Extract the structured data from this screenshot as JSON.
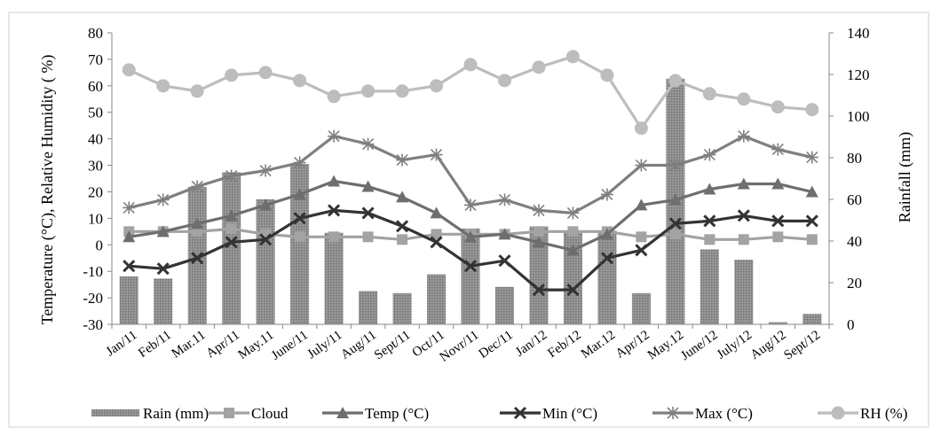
{
  "chart_data": {
    "type": "combo",
    "categories": [
      "Jan/11",
      "Feb/11",
      "Mar.11",
      "Apr/11",
      "May.11",
      "June/11",
      "July/11",
      "Aug/11",
      "Sept/11",
      "Oct/11",
      "Novr/11",
      "Dec/11",
      "Jan/12",
      "Feb/12",
      "Mar.12",
      "Apr/12",
      "May.12",
      "June/12",
      "July/12",
      "Aug/12",
      "Sept/12"
    ],
    "left_axis": {
      "label": "Temperature (°C), Relative Humidity ( %)",
      "range": [
        -30,
        80
      ],
      "ticks": [
        "80",
        "70",
        "60",
        "50",
        "40",
        "30",
        "20",
        "10",
        "0",
        "-10",
        "-20",
        "-30"
      ]
    },
    "right_axis": {
      "label": "Rainfall (mm)",
      "range": [
        0,
        140
      ],
      "ticks": [
        "140",
        "120",
        "100",
        "80",
        "60",
        "40",
        "20",
        "0"
      ]
    },
    "bars": {
      "name": "Rain (mm)",
      "axis": "right",
      "color": "#8c8c8c",
      "values": [
        23,
        22,
        66,
        73,
        60,
        77,
        44,
        16,
        15,
        24,
        46,
        18,
        47,
        44,
        45,
        15,
        118,
        36,
        31,
        1,
        5
      ]
    },
    "series": [
      {
        "name": "Cloud",
        "marker": "square",
        "color": "#a3a3a3",
        "values": [
          5,
          5,
          5,
          6,
          4,
          3,
          3,
          3,
          2,
          4,
          4,
          4,
          5,
          5,
          5,
          3,
          4,
          2,
          2,
          3,
          2
        ]
      },
      {
        "name": "Temp (°C)",
        "marker": "triangle",
        "color": "#6e6e6e",
        "values": [
          3,
          5,
          8,
          11,
          15,
          19,
          24,
          22,
          18,
          12,
          3,
          4,
          1,
          -2,
          4,
          15,
          17,
          21,
          23,
          23,
          20
        ]
      },
      {
        "name": "Min  (°C)",
        "marker": "x",
        "color": "#333333",
        "values": [
          -8,
          -9,
          -5,
          1,
          2,
          10,
          13,
          12,
          7,
          1,
          -8,
          -6,
          -17,
          -17,
          -5,
          -2,
          8,
          9,
          11,
          9,
          9
        ]
      },
      {
        "name": "Max  (°C)",
        "marker": "star",
        "color": "#7f7f7f",
        "values": [
          14,
          17,
          22,
          26,
          28,
          31,
          41,
          38,
          32,
          34,
          15,
          17,
          13,
          12,
          19,
          30,
          30,
          34,
          41,
          36,
          33
        ]
      },
      {
        "name": "RH (%)",
        "marker": "circle",
        "color": "#bdbdbd",
        "values": [
          66,
          60,
          58,
          64,
          65,
          62,
          56,
          58,
          58,
          60,
          68,
          62,
          67,
          71,
          64,
          44,
          62,
          57,
          55,
          52,
          51
        ]
      }
    ],
    "grid": false,
    "legend": "bottom"
  }
}
